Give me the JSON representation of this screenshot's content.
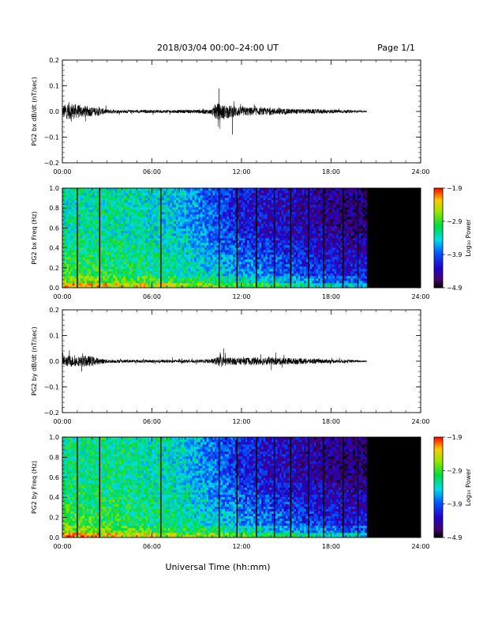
{
  "header": {
    "title": "2018/03/04  00:00–24:00 UT",
    "page": "Page 1/1"
  },
  "x_axis_label": "Universal Time (hh:mm)",
  "chart_data": [
    {
      "type": "line",
      "ylabel": "PG2 bx dB/dt (nT/sec)",
      "x_ticks": [
        "00:00",
        "06:00",
        "12:00",
        "18:00",
        "24:00"
      ],
      "xlim_hours": [
        0,
        24
      ],
      "ylim": [
        -0.2,
        0.2
      ],
      "y_ticks": [
        "0.2",
        "0.1",
        "0.0",
        "−0.1",
        "−0.2"
      ],
      "data_end_hour": 20.4,
      "line_color": "#000000",
      "envelope": {
        "x": [
          0,
          0.5,
          1.0,
          1.5,
          2.0,
          2.5,
          3,
          4,
          5,
          6,
          7,
          8,
          9,
          10,
          10.3,
          10.8,
          11.5,
          12,
          13,
          14,
          15,
          16,
          17,
          18,
          19,
          20,
          20.4
        ],
        "upper": [
          0.03,
          0.05,
          0.035,
          0.03,
          0.025,
          0.02,
          0.012,
          0.008,
          0.008,
          0.008,
          0.008,
          0.008,
          0.01,
          0.012,
          0.045,
          0.035,
          0.03,
          0.025,
          0.02,
          0.018,
          0.015,
          0.012,
          0.012,
          0.01,
          0.008,
          0.005,
          0.003
        ],
        "lower": [
          -0.03,
          -0.045,
          -0.035,
          -0.03,
          -0.025,
          -0.02,
          -0.012,
          -0.008,
          -0.008,
          -0.008,
          -0.008,
          -0.008,
          -0.01,
          -0.015,
          -0.045,
          -0.04,
          -0.03,
          -0.025,
          -0.02,
          -0.018,
          -0.015,
          -0.012,
          -0.012,
          -0.01,
          -0.008,
          -0.005,
          -0.003
        ]
      },
      "notable_extremes": {
        "max": 0.09,
        "max_hour": 10.5,
        "min": -0.09,
        "min_hour": 11.4
      }
    },
    {
      "type": "heatmap",
      "ylabel": "PG2 bx Freq (Hz)",
      "x_ticks": [
        "00:00",
        "06:00",
        "12:00",
        "18:00",
        "24:00"
      ],
      "xlim_hours": [
        0,
        24
      ],
      "ylim": [
        0.0,
        1.0
      ],
      "y_ticks": [
        "1.0",
        "0.8",
        "0.6",
        "0.4",
        "0.2",
        "0.0"
      ],
      "data_end_hour": 20.4,
      "no_data_color": "#000000",
      "vertical_gap_lines_hours": [
        1.0,
        2.5,
        6.6,
        10.5,
        11.7,
        13.0,
        14.2,
        15.3,
        16.5,
        17.5,
        18.8,
        19.8
      ],
      "colorbar": {
        "label": "Log₁₀ Power",
        "range": [
          -4.9,
          -1.9
        ],
        "ticks": [
          "−1.9",
          "−2.9",
          "−3.9",
          "−4.9"
        ]
      },
      "power_trend": {
        "hours": [
          0,
          4,
          8,
          10,
          12,
          14,
          16,
          18,
          20.4
        ],
        "log10_power_low_freq": [
          -2.8,
          -3.0,
          -3.2,
          -3.3,
          -3.5,
          -3.6,
          -3.8,
          -4.0,
          -4.1
        ],
        "log10_power_high_freq": [
          -3.3,
          -3.3,
          -3.5,
          -3.9,
          -4.2,
          -4.3,
          -4.4,
          -4.5,
          -4.6
        ]
      }
    },
    {
      "type": "line",
      "ylabel": "PG2 by dB/dt (nT/sec)",
      "x_ticks": [
        "00:00",
        "06:00",
        "12:00",
        "18:00",
        "24:00"
      ],
      "xlim_hours": [
        0,
        24
      ],
      "ylim": [
        -0.2,
        0.2
      ],
      "y_ticks": [
        "0.2",
        "0.1",
        "0.0",
        "−0.1",
        "−0.2"
      ],
      "data_end_hour": 20.4,
      "line_color": "#000000",
      "envelope": {
        "x": [
          0,
          0.5,
          1.0,
          1.5,
          2.0,
          2.5,
          3,
          4,
          5,
          6,
          7,
          8,
          9,
          10,
          10.5,
          11,
          12,
          13,
          14,
          15,
          16,
          17,
          18,
          19,
          20,
          20.4
        ],
        "upper": [
          0.025,
          0.03,
          0.025,
          0.03,
          0.025,
          0.015,
          0.01,
          0.008,
          0.008,
          0.008,
          0.008,
          0.008,
          0.008,
          0.012,
          0.025,
          0.02,
          0.018,
          0.02,
          0.02,
          0.018,
          0.015,
          0.012,
          0.01,
          0.008,
          0.005,
          0.003
        ],
        "lower": [
          -0.025,
          -0.03,
          -0.025,
          -0.03,
          -0.025,
          -0.015,
          -0.01,
          -0.008,
          -0.008,
          -0.008,
          -0.008,
          -0.008,
          -0.008,
          -0.012,
          -0.025,
          -0.02,
          -0.018,
          -0.02,
          -0.02,
          -0.018,
          -0.015,
          -0.012,
          -0.01,
          -0.008,
          -0.005,
          -0.003
        ]
      },
      "notable_extremes": {
        "max": 0.05,
        "max_hour": 10.8,
        "min": -0.04,
        "min_hour": 1.3
      }
    },
    {
      "type": "heatmap",
      "ylabel": "PG2 by Freq (Hz)",
      "x_ticks": [
        "00:00",
        "06:00",
        "12:00",
        "18:00",
        "24:00"
      ],
      "xlim_hours": [
        0,
        24
      ],
      "ylim": [
        0.0,
        1.0
      ],
      "y_ticks": [
        "1.0",
        "0.8",
        "0.6",
        "0.4",
        "0.2",
        "0.0"
      ],
      "data_end_hour": 20.4,
      "no_data_color": "#000000",
      "vertical_gap_lines_hours": [
        1.0,
        2.5,
        6.6,
        10.5,
        11.7,
        13.0,
        14.2,
        15.3,
        16.5,
        17.5,
        18.8,
        19.8
      ],
      "colorbar": {
        "label": "Log₁₀ Power",
        "range": [
          -4.9,
          -1.9
        ],
        "ticks": [
          "−1.9",
          "−2.9",
          "−3.9",
          "−4.9"
        ]
      },
      "power_trend": {
        "hours": [
          0,
          4,
          8,
          10,
          12,
          14,
          16,
          18,
          20.4
        ],
        "log10_power_low_freq": [
          -2.8,
          -3.0,
          -3.2,
          -3.3,
          -3.5,
          -3.6,
          -3.8,
          -4.0,
          -4.1
        ],
        "log10_power_high_freq": [
          -3.2,
          -3.2,
          -3.4,
          -3.8,
          -4.1,
          -4.3,
          -4.4,
          -4.5,
          -4.6
        ]
      }
    }
  ]
}
